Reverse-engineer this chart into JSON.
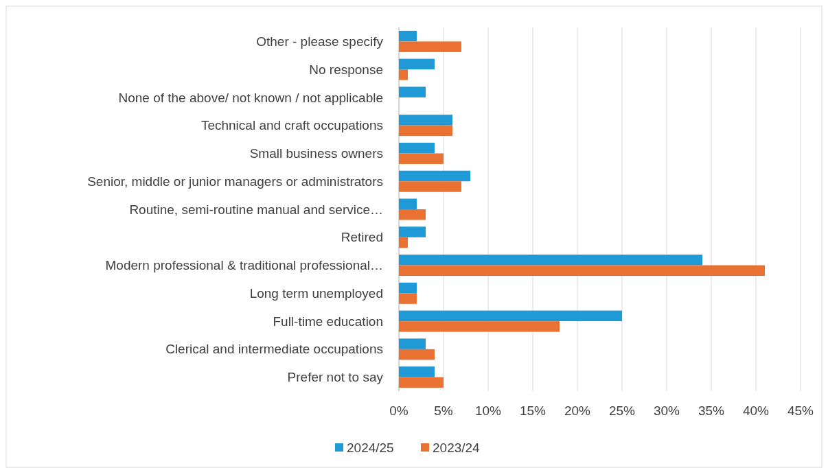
{
  "chart_data": {
    "type": "bar",
    "orientation": "horizontal",
    "categories": [
      "Other - please specify",
      "No response",
      "None of the above/ not known / not applicable",
      "Technical and craft occupations",
      "Small business owners",
      "Senior, middle or junior managers or administrators",
      "Routine, semi-routine manual and service…",
      "Retired",
      "Modern professional & traditional professional…",
      "Long term unemployed",
      "Full-time education",
      "Clerical and intermediate occupations",
      "Prefer not to say"
    ],
    "series": [
      {
        "name": "2024/25",
        "color": "#1f9ad6",
        "values": [
          2,
          4,
          3,
          6,
          4,
          8,
          2,
          3,
          34,
          2,
          25,
          3,
          4
        ]
      },
      {
        "name": "2023/24",
        "color": "#e97132",
        "values": [
          7,
          1,
          null,
          6,
          5,
          7,
          3,
          1,
          41,
          2,
          18,
          4,
          5
        ]
      }
    ],
    "xlim": [
      0,
      45
    ],
    "xticks": [
      {
        "value": 0,
        "label": "0%"
      },
      {
        "value": 5,
        "label": "5%"
      },
      {
        "value": 10,
        "label": "10%"
      },
      {
        "value": 15,
        "label": "15%"
      },
      {
        "value": 20,
        "label": "20%"
      },
      {
        "value": 25,
        "label": "25%"
      },
      {
        "value": 30,
        "label": "30%"
      },
      {
        "value": 35,
        "label": "35%"
      },
      {
        "value": 40,
        "label": "40%"
      },
      {
        "value": 45,
        "label": "45%"
      }
    ],
    "grid": "x",
    "legend": "bottom"
  }
}
